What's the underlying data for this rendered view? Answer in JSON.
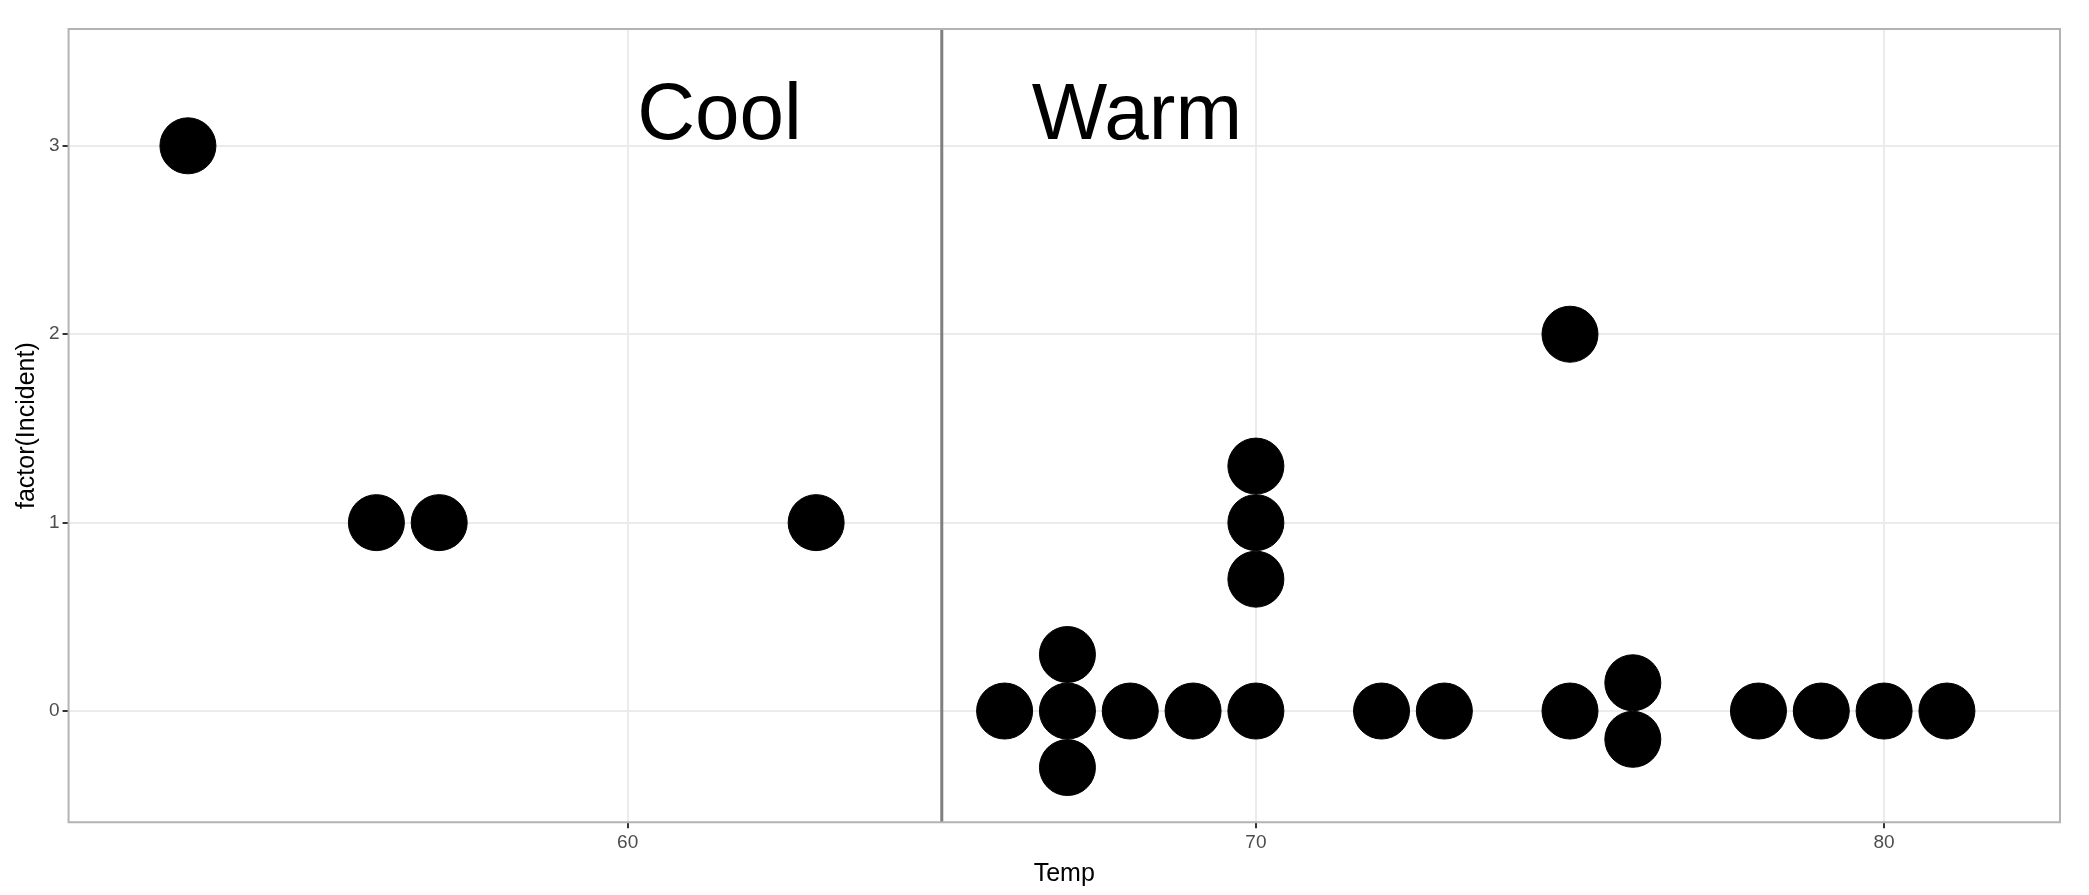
{
  "chart_data": {
    "type": "scatter",
    "xlabel": "Temp",
    "ylabel": "factor(Incident)",
    "x": [
      53,
      56,
      57,
      63,
      66,
      67,
      67,
      67,
      68,
      69,
      70,
      70,
      70,
      70,
      72,
      73,
      75,
      75,
      76,
      76,
      78,
      79,
      80,
      81
    ],
    "values": [
      3,
      1,
      1,
      1,
      0,
      0,
      0.3,
      -0.3,
      0,
      0,
      0,
      0.7,
      1,
      1.3,
      0,
      0,
      0,
      2,
      0.15,
      -0.15,
      0,
      0,
      0,
      0
    ],
    "color": "#000000",
    "marker": "circle",
    "xlim": [
      51.1,
      82.8
    ],
    "ylim": [
      -0.59,
      3.62
    ],
    "xticks": [
      60,
      70,
      80
    ],
    "yticks": [
      0,
      1,
      2,
      3
    ],
    "grid": true,
    "legend": false,
    "ref_lines": [
      {
        "axis": "x",
        "value": 65,
        "color": "#7f7f7f"
      }
    ],
    "annotations": [
      "Cool",
      "Warm"
    ]
  }
}
